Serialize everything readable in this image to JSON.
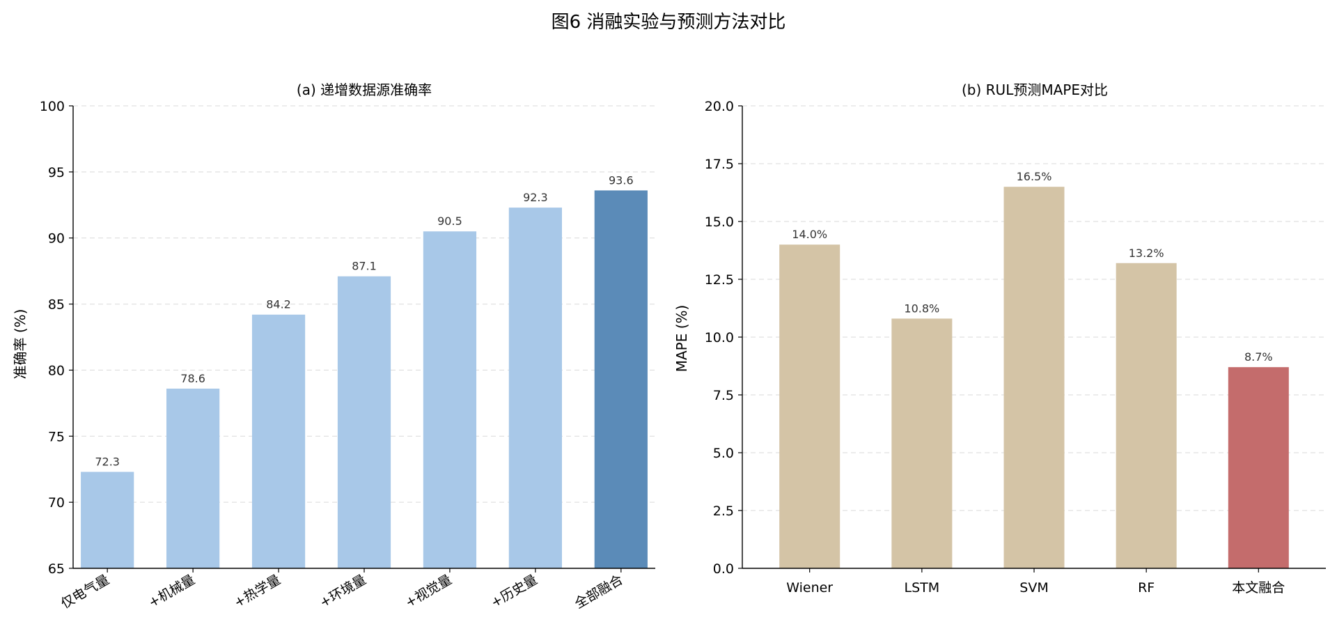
{
  "figure": {
    "suptitle": "图6  消融实验与预测方法对比"
  },
  "chart_data": [
    {
      "type": "bar",
      "title": "(a) 递增数据源准确率",
      "xlabel": "",
      "ylabel": "准确率 (%)",
      "categories": [
        "仅电气量",
        "+机械量",
        "+热学量",
        "+环境量",
        "+视觉量",
        "+历史量",
        "全部融合"
      ],
      "values": [
        72.3,
        78.6,
        84.2,
        87.1,
        90.5,
        92.3,
        93.6
      ],
      "value_labels": [
        "72.3",
        "78.6",
        "84.2",
        "87.1",
        "90.5",
        "92.3",
        "93.6"
      ],
      "ylim": [
        65,
        100
      ],
      "yticks": [
        "65",
        "70",
        "75",
        "80",
        "85",
        "90",
        "95",
        "100"
      ],
      "ytick_values": [
        65,
        70,
        75,
        80,
        85,
        90,
        95,
        100
      ],
      "colors": [
        "#a8c8e8",
        "#a8c8e8",
        "#a8c8e8",
        "#a8c8e8",
        "#a8c8e8",
        "#a8c8e8",
        "#5b8bb8"
      ],
      "grid": "y-dashed",
      "xtick_rotation": "rotated"
    },
    {
      "type": "bar",
      "title": "(b) RUL预测MAPE对比",
      "xlabel": "",
      "ylabel": "MAPE (%)",
      "categories": [
        "Wiener",
        "LSTM",
        "SVM",
        "RF",
        "本文融合"
      ],
      "values": [
        14.0,
        10.8,
        16.5,
        13.2,
        8.7
      ],
      "value_labels": [
        "14.0%",
        "10.8%",
        "16.5%",
        "13.2%",
        "8.7%"
      ],
      "ylim": [
        0,
        20
      ],
      "yticks": [
        "0.0",
        "2.5",
        "5.0",
        "7.5",
        "10.0",
        "12.5",
        "15.0",
        "17.5",
        "20.0"
      ],
      "ytick_values": [
        0,
        2.5,
        5,
        7.5,
        10,
        12.5,
        15,
        17.5,
        20
      ],
      "colors": [
        "#d4c4a6",
        "#d4c4a6",
        "#d4c4a6",
        "#d4c4a6",
        "#c46c6c"
      ],
      "grid": "y-dashed",
      "xtick_rotation": "none"
    }
  ]
}
